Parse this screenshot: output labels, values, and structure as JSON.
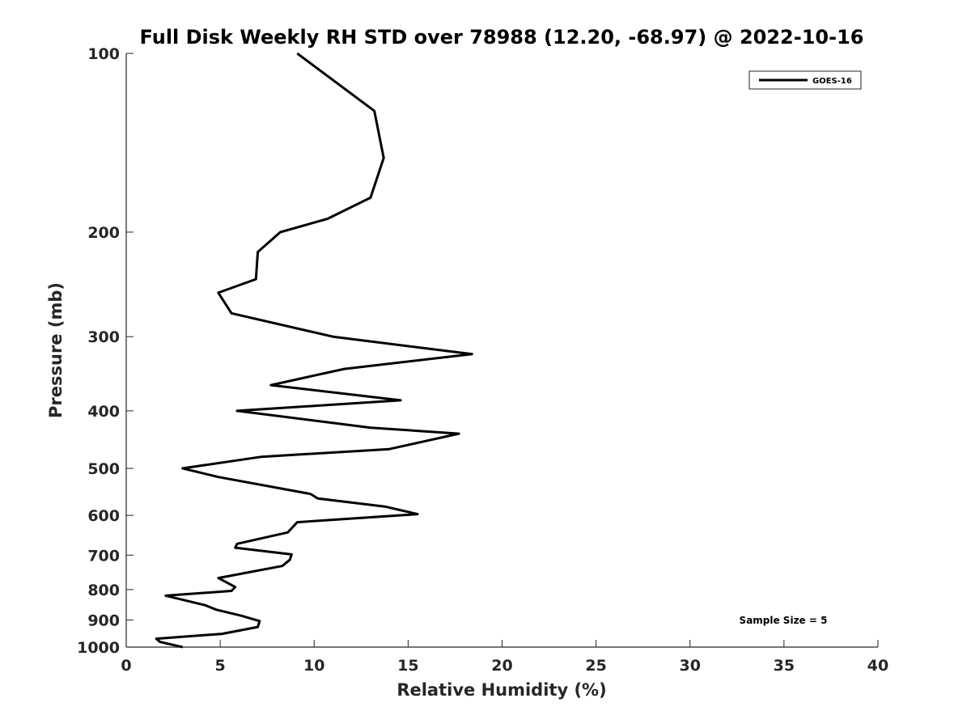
{
  "chart_data": {
    "type": "line",
    "title": "Full Disk Weekly RH STD over 78988 (12.20, -68.97) @ 2022-10-16",
    "xlabel": "Relative Humidity (%)",
    "ylabel": "Pressure (mb)",
    "xlim": [
      0,
      40
    ],
    "ylim": [
      100,
      1000
    ],
    "y_scale": "log",
    "y_reversed": true,
    "grid": false,
    "legend_position": "top-right",
    "x_ticks": [
      0,
      5,
      10,
      15,
      20,
      25,
      30,
      35,
      40
    ],
    "y_ticks": [
      100,
      200,
      300,
      400,
      500,
      600,
      700,
      800,
      900,
      1000
    ],
    "annotation": "Sample Size = 5",
    "series": [
      {
        "name": "GOES-16",
        "color": "#000000",
        "points": [
          [
            9.1,
            100
          ],
          [
            13.2,
            125
          ],
          [
            13.7,
            150
          ],
          [
            13.0,
            175
          ],
          [
            10.7,
            190
          ],
          [
            8.2,
            200
          ],
          [
            7.0,
            216
          ],
          [
            6.9,
            240
          ],
          [
            4.9,
            253
          ],
          [
            5.6,
            274
          ],
          [
            11.0,
            300
          ],
          [
            18.4,
            321
          ],
          [
            11.6,
            340
          ],
          [
            7.7,
            362
          ],
          [
            14.6,
            384
          ],
          [
            5.9,
            400
          ],
          [
            13.0,
            427
          ],
          [
            17.7,
            437
          ],
          [
            14.0,
            464
          ],
          [
            7.2,
            478
          ],
          [
            3.0,
            500
          ],
          [
            4.9,
            517
          ],
          [
            9.8,
            552
          ],
          [
            10.2,
            562
          ],
          [
            13.8,
            580
          ],
          [
            15.5,
            597
          ],
          [
            9.1,
            616
          ],
          [
            8.6,
            641
          ],
          [
            5.9,
            670
          ],
          [
            5.8,
            680
          ],
          [
            8.8,
            698
          ],
          [
            8.7,
            713
          ],
          [
            8.3,
            730
          ],
          [
            4.9,
            765
          ],
          [
            5.8,
            792
          ],
          [
            5.6,
            804
          ],
          [
            2.1,
            819
          ],
          [
            4.2,
            850
          ],
          [
            4.8,
            865
          ],
          [
            6.1,
            885
          ],
          [
            7.1,
            904
          ],
          [
            7.0,
            925
          ],
          [
            5.1,
            950
          ],
          [
            1.6,
            968
          ],
          [
            1.8,
            980
          ],
          [
            3.0,
            1000
          ]
        ]
      }
    ]
  }
}
